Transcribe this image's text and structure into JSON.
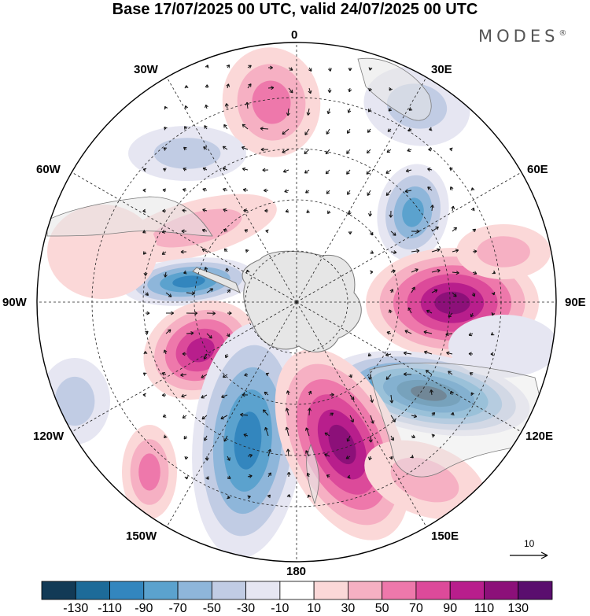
{
  "title": "Base 17/07/2025 00 UTC, valid 24/07/2025 00 UTC",
  "brand": "MODES",
  "brand_mark": "®",
  "longitude_labels": {
    "lon_0": "0",
    "lon_30e": "30E",
    "lon_60e": "60E",
    "lon_90e": "90E",
    "lon_120e": "120E",
    "lon_150e": "150E",
    "lon_180": "180",
    "lon_150w": "150W",
    "lon_120w": "120W",
    "lon_90w": "90W",
    "lon_60w": "60W",
    "lon_30w": "30W"
  },
  "reference_vector": "10",
  "colorbar": {
    "ticks": [
      "-130",
      "-110",
      "-90",
      "-70",
      "-50",
      "-30",
      "-10",
      "10",
      "30",
      "50",
      "70",
      "90",
      "110",
      "130"
    ],
    "colors": [
      "#123a56",
      "#1d6b99",
      "#3386be",
      "#5ba2ce",
      "#8eb6da",
      "#c1cce4",
      "#e6e6f2",
      "#ffffff",
      "#fbd8d8",
      "#f6b0c3",
      "#ee78ab",
      "#dc4a9a",
      "#b81e8c",
      "#8c1079",
      "#5a0e6e"
    ]
  },
  "colors": {
    "land": "#e6e6e6",
    "coast": "#7a7a7a",
    "grid": "#222222"
  }
}
